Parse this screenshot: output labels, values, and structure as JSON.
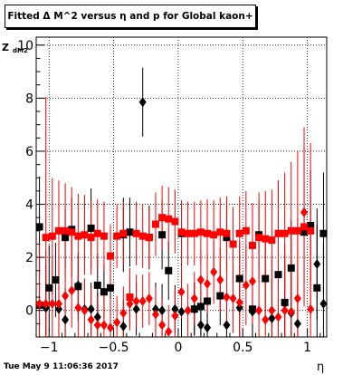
{
  "title": "Fitted Δ M^2 versus η and p for Global kaon+",
  "ylabel_main": "Z",
  "ylabel_sub": "dM2",
  "xlabel": "η",
  "timestamp": "Tue May  9 11:06:36 2017",
  "chart_data": {
    "type": "scatter",
    "title": "Fitted Δ M^2 versus η and p for Global kaon+",
    "xlabel": "η",
    "ylabel": "Z_dM2",
    "xlim": [
      -1.1,
      1.15
    ],
    "ylim": [
      -1.0,
      10.3
    ],
    "x_ticks": [
      -1,
      -0.5,
      0,
      0.5,
      1
    ],
    "x_tick_labels": [
      "−1",
      "−0.5",
      "0",
      "0.5",
      "1"
    ],
    "y_ticks": [
      0,
      2,
      4,
      6,
      8,
      10
    ],
    "y_tick_labels": [
      "0",
      "2",
      "4",
      "6",
      "8",
      "10"
    ],
    "grid": true,
    "series": [
      {
        "marker": "square",
        "color": "#000000",
        "points": [
          {
            "x": -1.075,
            "y": 3.15,
            "err": 1.9
          },
          {
            "x": -1.075,
            "y": 0.2,
            "err": 2.0
          },
          {
            "x": -1.0,
            "y": 0.85,
            "err": 1.6
          },
          {
            "x": -0.95,
            "y": 1.15,
            "err": 1.4
          },
          {
            "x": -0.875,
            "y": 2.75,
            "err": 1.1
          },
          {
            "x": -0.825,
            "y": 3.05,
            "err": 1.2
          },
          {
            "x": -0.775,
            "y": 0.9,
            "err": 1.3
          },
          {
            "x": -0.675,
            "y": 3.1,
            "err": 1.5
          },
          {
            "x": -0.625,
            "y": 0.95,
            "err": 1.2
          },
          {
            "x": -0.575,
            "y": 0.7,
            "err": 1.0
          },
          {
            "x": -0.525,
            "y": 0.85,
            "err": 1.1
          },
          {
            "x": -0.425,
            "y": 2.85,
            "err": 1.4
          },
          {
            "x": -0.375,
            "y": 2.95,
            "err": 1.3
          },
          {
            "x": -0.225,
            "y": 2.75,
            "err": 1.2
          },
          {
            "x": -0.125,
            "y": 2.85,
            "err": 1.3
          },
          {
            "x": -0.075,
            "y": 1.5,
            "err": 1.1
          },
          {
            "x": 0.025,
            "y": 2.9,
            "err": 1.2
          },
          {
            "x": 0.125,
            "y": 0.05,
            "err": 1.0
          },
          {
            "x": 0.175,
            "y": 0.15,
            "err": 1.1
          },
          {
            "x": 0.225,
            "y": 0.35,
            "err": 1.0
          },
          {
            "x": 0.325,
            "y": 0.55,
            "err": 1.1
          },
          {
            "x": 0.375,
            "y": 2.75,
            "err": 1.2
          },
          {
            "x": 0.475,
            "y": 1.2,
            "err": 1.4
          },
          {
            "x": 0.575,
            "y": 0.05,
            "err": 1.5
          },
          {
            "x": 0.625,
            "y": 2.85,
            "err": 1.3
          },
          {
            "x": 0.675,
            "y": 1.2,
            "err": 1.4
          },
          {
            "x": 0.775,
            "y": 1.35,
            "err": 1.6
          },
          {
            "x": 0.825,
            "y": 0.3,
            "err": 1.8
          },
          {
            "x": 0.875,
            "y": 1.6,
            "err": 1.8
          },
          {
            "x": 0.975,
            "y": 2.95,
            "err": 1.9
          },
          {
            "x": 1.025,
            "y": 3.2,
            "err": 2.1
          },
          {
            "x": 1.075,
            "y": 0.85,
            "err": 2.4
          },
          {
            "x": 1.125,
            "y": 2.9,
            "err": 2.3
          }
        ]
      },
      {
        "marker": "diamond",
        "color": "#000000",
        "points": [
          {
            "x": -1.025,
            "y": 0.1,
            "err": 1.6
          },
          {
            "x": -0.925,
            "y": 0.05,
            "err": 1.3
          },
          {
            "x": -0.875,
            "y": -0.35,
            "err": 1.2
          },
          {
            "x": -0.775,
            "y": 0.95,
            "err": 1.1
          },
          {
            "x": -0.725,
            "y": 0.05,
            "err": 1.0
          },
          {
            "x": -0.675,
            "y": 0.05,
            "err": 1.0
          },
          {
            "x": -0.625,
            "y": -0.25,
            "err": 0.9
          },
          {
            "x": -0.425,
            "y": -0.6,
            "err": 1.0
          },
          {
            "x": -0.325,
            "y": 0.05,
            "err": 1.0
          },
          {
            "x": -0.275,
            "y": 7.85,
            "err": 1.3
          },
          {
            "x": -0.175,
            "y": 0.05,
            "err": 1.0
          },
          {
            "x": -0.125,
            "y": 0.0,
            "err": 1.0
          },
          {
            "x": -0.025,
            "y": 0.05,
            "err": 0.9
          },
          {
            "x": 0.025,
            "y": -0.05,
            "err": 1.0
          },
          {
            "x": 0.125,
            "y": 0.05,
            "err": 1.0
          },
          {
            "x": 0.175,
            "y": -0.55,
            "err": 1.0
          },
          {
            "x": 0.225,
            "y": -0.65,
            "err": 1.0
          },
          {
            "x": 0.375,
            "y": -0.55,
            "err": 1.0
          },
          {
            "x": 0.475,
            "y": 0.1,
            "err": 1.1
          },
          {
            "x": 0.575,
            "y": -0.05,
            "err": 1.3
          },
          {
            "x": 0.725,
            "y": -0.3,
            "err": 1.5
          },
          {
            "x": 0.825,
            "y": 0.25,
            "err": 1.6
          },
          {
            "x": 0.875,
            "y": -0.1,
            "err": 1.7
          },
          {
            "x": 0.925,
            "y": -0.5,
            "err": 1.8
          },
          {
            "x": 1.075,
            "y": 1.75,
            "err": 2.1
          },
          {
            "x": 1.125,
            "y": 0.25,
            "err": 2.3
          }
        ]
      },
      {
        "marker": "square",
        "color": "#ff0000",
        "points": [
          {
            "x": -1.025,
            "y": 2.75,
            "err": 5.3
          },
          {
            "x": -0.975,
            "y": 2.8,
            "err": 2.2
          },
          {
            "x": -0.925,
            "y": 3.0,
            "err": 1.9
          },
          {
            "x": -0.875,
            "y": 3.0,
            "err": 1.8
          },
          {
            "x": -0.825,
            "y": 2.95,
            "err": 1.7
          },
          {
            "x": -0.775,
            "y": 2.8,
            "err": 1.6
          },
          {
            "x": -0.725,
            "y": 2.85,
            "err": 1.5
          },
          {
            "x": -0.675,
            "y": 2.75,
            "err": 1.4
          },
          {
            "x": -0.625,
            "y": 2.9,
            "err": 1.3
          },
          {
            "x": -0.575,
            "y": 2.8,
            "err": 1.3
          },
          {
            "x": -0.525,
            "y": 2.05,
            "err": 1.2
          },
          {
            "x": -0.475,
            "y": 2.8,
            "err": 1.2
          },
          {
            "x": -0.425,
            "y": 2.9,
            "err": 1.2
          },
          {
            "x": -0.375,
            "y": 0.5,
            "err": 1.1
          },
          {
            "x": -0.325,
            "y": 2.9,
            "err": 1.2
          },
          {
            "x": -0.275,
            "y": 2.8,
            "err": 1.2
          },
          {
            "x": -0.225,
            "y": 2.75,
            "err": 1.1
          },
          {
            "x": -0.175,
            "y": 3.25,
            "err": 1.2
          },
          {
            "x": -0.125,
            "y": 3.5,
            "err": 1.2
          },
          {
            "x": -0.075,
            "y": 3.45,
            "err": 1.2
          },
          {
            "x": -0.025,
            "y": 3.35,
            "err": 1.2
          },
          {
            "x": 0.025,
            "y": 2.95,
            "err": 1.2
          },
          {
            "x": 0.075,
            "y": 2.9,
            "err": 1.2
          },
          {
            "x": 0.125,
            "y": 2.9,
            "err": 1.2
          },
          {
            "x": 0.175,
            "y": 2.95,
            "err": 1.2
          },
          {
            "x": 0.225,
            "y": 2.9,
            "err": 1.3
          },
          {
            "x": 0.275,
            "y": 2.85,
            "err": 1.3
          },
          {
            "x": 0.325,
            "y": 2.95,
            "err": 1.3
          },
          {
            "x": 0.375,
            "y": 2.9,
            "err": 1.4
          },
          {
            "x": 0.425,
            "y": 2.5,
            "err": 1.4
          },
          {
            "x": 0.475,
            "y": 2.9,
            "err": 1.4
          },
          {
            "x": 0.525,
            "y": 3.0,
            "err": 1.5
          },
          {
            "x": 0.575,
            "y": 2.45,
            "err": 1.6
          },
          {
            "x": 0.625,
            "y": 2.75,
            "err": 1.7
          },
          {
            "x": 0.675,
            "y": 2.7,
            "err": 1.8
          },
          {
            "x": 0.725,
            "y": 2.65,
            "err": 1.9
          },
          {
            "x": 0.775,
            "y": 2.9,
            "err": 2.0
          },
          {
            "x": 0.825,
            "y": 2.9,
            "err": 2.3
          },
          {
            "x": 0.875,
            "y": 3.0,
            "err": 2.6
          },
          {
            "x": 0.925,
            "y": 3.0,
            "err": 3.0
          },
          {
            "x": 0.975,
            "y": 3.15,
            "err": 3.0
          },
          {
            "x": 1.025,
            "y": 3.0,
            "err": 3.3
          }
        ]
      },
      {
        "marker": "diamond",
        "color": "#ff0000",
        "points": [
          {
            "x": -1.075,
            "y": 0.25,
            "err": 2.3
          },
          {
            "x": -1.025,
            "y": 0.25,
            "err": 2.0
          },
          {
            "x": -0.975,
            "y": 0.25,
            "err": 1.8
          },
          {
            "x": -0.925,
            "y": 0.25,
            "err": 1.6
          },
          {
            "x": -0.875,
            "y": 0.55,
            "err": 1.5
          },
          {
            "x": -0.825,
            "y": 0.75,
            "err": 1.4
          },
          {
            "x": -0.775,
            "y": 0.1,
            "err": 1.3
          },
          {
            "x": -0.725,
            "y": 0.0,
            "err": 1.2
          },
          {
            "x": -0.675,
            "y": -0.35,
            "err": 1.2
          },
          {
            "x": -0.625,
            "y": -0.55,
            "err": 1.1
          },
          {
            "x": -0.575,
            "y": -0.55,
            "err": 1.1
          },
          {
            "x": -0.525,
            "y": -0.65,
            "err": 1.1
          },
          {
            "x": -0.475,
            "y": -0.45,
            "err": 1.0
          },
          {
            "x": -0.425,
            "y": -0.1,
            "err": 1.0
          },
          {
            "x": -0.375,
            "y": 0.25,
            "err": 1.0
          },
          {
            "x": -0.325,
            "y": 0.35,
            "err": 1.0
          },
          {
            "x": -0.275,
            "y": 0.35,
            "err": 1.0
          },
          {
            "x": -0.225,
            "y": 0.45,
            "err": 1.0
          },
          {
            "x": -0.175,
            "y": -0.15,
            "err": 1.0
          },
          {
            "x": -0.125,
            "y": -0.55,
            "err": 1.0
          },
          {
            "x": -0.075,
            "y": -0.8,
            "err": 1.0
          },
          {
            "x": -0.025,
            "y": -0.2,
            "err": 1.0
          },
          {
            "x": 0.025,
            "y": 0.7,
            "err": 1.0
          },
          {
            "x": 0.075,
            "y": 0.0,
            "err": 1.0
          },
          {
            "x": 0.125,
            "y": 0.45,
            "err": 1.0
          },
          {
            "x": 0.175,
            "y": 1.15,
            "err": 1.1
          },
          {
            "x": 0.225,
            "y": 1.0,
            "err": 1.1
          },
          {
            "x": 0.275,
            "y": 1.45,
            "err": 1.2
          },
          {
            "x": 0.325,
            "y": 1.15,
            "err": 1.2
          },
          {
            "x": 0.375,
            "y": 0.5,
            "err": 1.2
          },
          {
            "x": 0.425,
            "y": 0.45,
            "err": 1.3
          },
          {
            "x": 0.475,
            "y": 0.3,
            "err": 1.4
          },
          {
            "x": 0.525,
            "y": 0.95,
            "err": 1.5
          },
          {
            "x": 0.575,
            "y": 1.1,
            "err": 1.6
          },
          {
            "x": 0.625,
            "y": 0.0,
            "err": 1.7
          },
          {
            "x": 0.675,
            "y": -0.35,
            "err": 1.9
          },
          {
            "x": 0.725,
            "y": 0.0,
            "err": 2.0
          },
          {
            "x": 0.775,
            "y": -0.25,
            "err": 2.2
          },
          {
            "x": 0.825,
            "y": 0.0,
            "err": 2.5
          },
          {
            "x": 0.875,
            "y": -0.05,
            "err": 2.8
          },
          {
            "x": 0.925,
            "y": 0.45,
            "err": 3.0
          },
          {
            "x": 0.975,
            "y": 3.7,
            "err": 3.2
          },
          {
            "x": 1.025,
            "y": 0.05,
            "err": 3.0
          }
        ]
      }
    ]
  }
}
